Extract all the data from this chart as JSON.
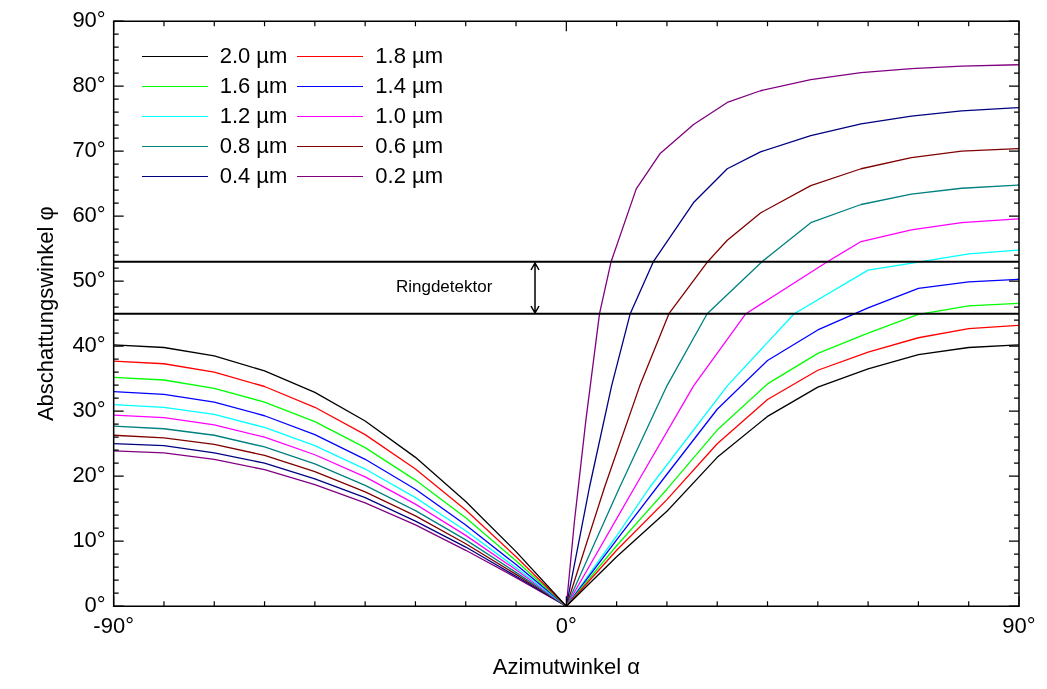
{
  "chart_data": {
    "type": "line",
    "xlabel": "Azimutwinkel α",
    "ylabel": "Abschattungswinkel φ",
    "xlim": [
      -90,
      90
    ],
    "ylim": [
      0,
      90
    ],
    "xticks": [
      {
        "value": -90,
        "label": "-90°"
      },
      {
        "value": -80,
        "label": null
      },
      {
        "value": -70,
        "label": null
      },
      {
        "value": -60,
        "label": null
      },
      {
        "value": -50,
        "label": null
      },
      {
        "value": -40,
        "label": null
      },
      {
        "value": -30,
        "label": null
      },
      {
        "value": -20,
        "label": null
      },
      {
        "value": -10,
        "label": null
      },
      {
        "value": 0,
        "label": "0°"
      },
      {
        "value": 10,
        "label": null
      },
      {
        "value": 20,
        "label": null
      },
      {
        "value": 30,
        "label": null
      },
      {
        "value": 40,
        "label": null
      },
      {
        "value": 50,
        "label": null
      },
      {
        "value": 60,
        "label": null
      },
      {
        "value": 70,
        "label": null
      },
      {
        "value": 80,
        "label": null
      },
      {
        "value": 90,
        "label": "90°"
      }
    ],
    "yticks": [
      {
        "value": 0,
        "label": "0°"
      },
      {
        "value": 2,
        "label": null
      },
      {
        "value": 4,
        "label": null
      },
      {
        "value": 6,
        "label": null
      },
      {
        "value": 8,
        "label": null
      },
      {
        "value": 10,
        "label": "10°"
      },
      {
        "value": 12,
        "label": null
      },
      {
        "value": 14,
        "label": null
      },
      {
        "value": 16,
        "label": null
      },
      {
        "value": 18,
        "label": null
      },
      {
        "value": 20,
        "label": "20°"
      },
      {
        "value": 22,
        "label": null
      },
      {
        "value": 24,
        "label": null
      },
      {
        "value": 26,
        "label": null
      },
      {
        "value": 28,
        "label": null
      },
      {
        "value": 30,
        "label": "30°"
      },
      {
        "value": 32,
        "label": null
      },
      {
        "value": 34,
        "label": null
      },
      {
        "value": 36,
        "label": null
      },
      {
        "value": 38,
        "label": null
      },
      {
        "value": 40,
        "label": "40°"
      },
      {
        "value": 42,
        "label": null
      },
      {
        "value": 44,
        "label": null
      },
      {
        "value": 46,
        "label": null
      },
      {
        "value": 48,
        "label": null
      },
      {
        "value": 50,
        "label": "50°"
      },
      {
        "value": 52,
        "label": null
      },
      {
        "value": 54,
        "label": null
      },
      {
        "value": 56,
        "label": null
      },
      {
        "value": 58,
        "label": null
      },
      {
        "value": 60,
        "label": "60°"
      },
      {
        "value": 62,
        "label": null
      },
      {
        "value": 64,
        "label": null
      },
      {
        "value": 66,
        "label": null
      },
      {
        "value": 68,
        "label": null
      },
      {
        "value": 70,
        "label": "70°"
      },
      {
        "value": 72,
        "label": null
      },
      {
        "value": 74,
        "label": null
      },
      {
        "value": 76,
        "label": null
      },
      {
        "value": 78,
        "label": null
      },
      {
        "value": 80,
        "label": "80°"
      },
      {
        "value": 82,
        "label": null
      },
      {
        "value": 84,
        "label": null
      },
      {
        "value": 86,
        "label": null
      },
      {
        "value": 88,
        "label": null
      },
      {
        "value": 90,
        "label": "90°"
      }
    ],
    "legend": "top left",
    "marker": "none",
    "line_style": "solid",
    "grid": false,
    "ref_lines": [
      {
        "axis": "y",
        "value": 53,
        "label": "Ringdetektor",
        "color": "#000000"
      },
      {
        "axis": "y",
        "value": 45,
        "color": "#000000"
      }
    ],
    "series": [
      {
        "name": "2.0 µm",
        "color": "#000000",
        "x": [
          -90,
          -80,
          -70,
          -60,
          -50,
          -40,
          -30,
          -20,
          -10,
          0,
          10,
          20,
          30,
          40,
          50,
          60,
          70,
          80,
          90
        ],
        "values": [
          40.2,
          39.8,
          38.5,
          36.2,
          32.9,
          28.5,
          22.9,
          16.1,
          8.4,
          0,
          7.6,
          14.6,
          22.9,
          29.2,
          33.7,
          36.5,
          38.7,
          39.8,
          40.2
        ]
      },
      {
        "name": "1.8 µm",
        "color": "#ff0000",
        "x": [
          -90,
          -80,
          -70,
          -60,
          -50,
          -40,
          -30,
          -20,
          -10,
          0,
          10,
          20,
          30,
          40,
          50,
          60,
          70,
          80,
          90
        ],
        "values": [
          37.7,
          37.3,
          36.0,
          33.8,
          30.6,
          26.4,
          21.1,
          14.8,
          7.6,
          0,
          8.6,
          16.4,
          25.0,
          31.8,
          36.3,
          39.1,
          41.3,
          42.7,
          43.2
        ]
      },
      {
        "name": "1.6 µm",
        "color": "#00ff00",
        "x": [
          -90,
          -80,
          -70,
          -60,
          -50,
          -40,
          -30,
          -20,
          -10,
          0,
          10,
          20,
          30,
          40,
          50,
          60,
          70,
          80,
          90
        ],
        "values": [
          35.2,
          34.8,
          33.5,
          31.4,
          28.4,
          24.4,
          19.4,
          13.6,
          7.0,
          0,
          9.3,
          18.0,
          27.1,
          34.2,
          38.9,
          42.0,
          44.9,
          46.2,
          46.6
        ]
      },
      {
        "name": "1.4 µm",
        "color": "#0000ff",
        "x": [
          -90,
          -80,
          -70,
          -60,
          -50,
          -40,
          -30,
          -20,
          -10,
          0,
          10,
          20,
          30,
          40,
          50,
          60,
          70,
          80,
          90
        ],
        "values": [
          33.0,
          32.6,
          31.4,
          29.3,
          26.4,
          22.6,
          18.0,
          12.5,
          6.4,
          0,
          10.2,
          20.3,
          30.3,
          37.8,
          42.5,
          45.9,
          48.9,
          49.9,
          50.3
        ]
      },
      {
        "name": "1.2 µm",
        "color": "#00ffff",
        "x": [
          -90,
          -80,
          -70,
          -60,
          -50,
          -40,
          -30,
          -20,
          -10,
          0,
          10,
          16.6,
          32.0,
          45.3,
          60,
          70.6,
          80,
          90
        ],
        "values": [
          31.0,
          30.6,
          29.5,
          27.5,
          24.7,
          21.1,
          16.7,
          11.6,
          5.9,
          0,
          10.8,
          18.3,
          33.9,
          45,
          51.7,
          53,
          54.2,
          54.8
        ]
      },
      {
        "name": "1.0 µm",
        "color": "#ff00ff",
        "x": [
          -90,
          -80,
          -70,
          -60,
          -50,
          -40,
          -30,
          -20,
          -10,
          0,
          13.6,
          25.3,
          35.7,
          51.9,
          58.6,
          68.6,
          78.6,
          90
        ],
        "values": [
          29.4,
          29.0,
          27.9,
          26.0,
          23.3,
          19.9,
          15.7,
          10.9,
          5.6,
          0,
          18.3,
          33.9,
          45,
          53,
          56.1,
          57.9,
          59,
          59.6
        ]
      },
      {
        "name": "0.8 µm",
        "color": "#008080",
        "x": [
          -90,
          -80,
          -70,
          -60,
          -50,
          -40,
          -30,
          -20,
          -10,
          0,
          10.6,
          20.0,
          28,
          38.9,
          48.6,
          58.6,
          68.6,
          78.6,
          90
        ],
        "values": [
          27.7,
          27.3,
          26.3,
          24.5,
          21.9,
          18.6,
          14.7,
          10.2,
          5.2,
          0,
          18.3,
          33.9,
          45,
          53,
          59,
          61.8,
          63.4,
          64.3,
          64.8
        ]
      },
      {
        "name": "0.6 µm",
        "color": "#800000",
        "x": [
          -90,
          -80,
          -70,
          -60,
          -50,
          -40,
          -30,
          -20,
          -10,
          0,
          7.6,
          14.6,
          20.4,
          28.1,
          32,
          38.6,
          48.6,
          58.6,
          68.6,
          78.6,
          90
        ],
        "values": [
          26.3,
          25.9,
          24.9,
          23.2,
          20.7,
          17.6,
          13.9,
          9.6,
          4.9,
          0,
          18.3,
          33.9,
          45,
          53,
          56.3,
          60.5,
          64.7,
          67.3,
          69,
          70,
          70.4
        ]
      },
      {
        "name": "0.4 µm",
        "color": "#000080",
        "x": [
          -90,
          -80,
          -70,
          -60,
          -50,
          -40,
          -30,
          -20,
          -10,
          0,
          4.6,
          9.0,
          12.7,
          17.3,
          25.3,
          32,
          38.6,
          48.6,
          58.6,
          68.6,
          78.6,
          90
        ],
        "values": [
          25.0,
          24.7,
          23.6,
          22.0,
          19.6,
          16.7,
          13.1,
          9.1,
          4.6,
          0,
          18.3,
          33.9,
          45,
          53,
          62.1,
          67.3,
          69.9,
          72.4,
          74.2,
          75.4,
          76.2,
          76.7
        ]
      },
      {
        "name": "0.2 µm",
        "color": "#800080",
        "x": [
          -90,
          -80,
          -70,
          -60,
          -50,
          -40,
          -30,
          -20,
          -10,
          0,
          1.6,
          3.9,
          6.6,
          8.9,
          13.9,
          18.6,
          25.3,
          32,
          38.6,
          48.6,
          58.6,
          68.6,
          78.6,
          90
        ],
        "values": [
          23.9,
          23.6,
          22.6,
          21.0,
          18.7,
          15.9,
          12.5,
          8.6,
          4.4,
          0,
          13,
          28.7,
          45,
          53,
          64.2,
          69.6,
          74.1,
          77.5,
          79.3,
          81,
          82.1,
          82.7,
          83.1,
          83.3
        ]
      }
    ]
  }
}
